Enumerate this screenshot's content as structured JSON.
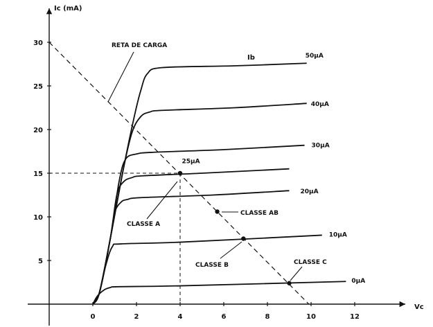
{
  "chart_data": {
    "type": "line",
    "x_axis": {
      "label": "Vc",
      "ticks": [
        0,
        2,
        4,
        6,
        8,
        10,
        12
      ],
      "range": [
        -2,
        15
      ]
    },
    "y_axis": {
      "label": "Ic (mA)",
      "ticks": [
        5,
        10,
        15,
        20,
        25,
        30
      ],
      "range": [
        -2,
        34
      ]
    },
    "grid": false,
    "family_label": "Ib",
    "series": [
      {
        "name": "50μA",
        "x": [
          0,
          0.3,
          0.8,
          1.4,
          1.9,
          2.2,
          2.5,
          3.2,
          6.5,
          9.8
        ],
        "y": [
          0,
          1.3,
          7.5,
          15.5,
          21.5,
          24.5,
          26.4,
          27.1,
          27.3,
          27.6
        ]
      },
      {
        "name": "40μA",
        "x": [
          0,
          0.3,
          0.8,
          1.4,
          1.8,
          2.2,
          2.6,
          3.2,
          6.5,
          9.8
        ],
        "y": [
          0,
          1.3,
          7.5,
          15.5,
          19.7,
          21.5,
          22.0,
          22.2,
          22.5,
          23.0
        ]
      },
      {
        "name": "30μA",
        "x": [
          0,
          0.3,
          0.8,
          1.2,
          1.5,
          2.0,
          2.8,
          6.0,
          9.7
        ],
        "y": [
          0,
          1.3,
          7.5,
          14.0,
          16.6,
          17.2,
          17.4,
          17.7,
          18.2
        ]
      },
      {
        "name": "25μA",
        "x": [
          0,
          0.3,
          0.8,
          1.1,
          1.4,
          1.8,
          2.3,
          5.0,
          9.0
        ],
        "y": [
          0,
          1.3,
          7.5,
          12.5,
          14.0,
          14.5,
          14.7,
          15.0,
          15.5
        ]
      },
      {
        "name": "20μA",
        "x": [
          0,
          0.3,
          0.8,
          1.0,
          1.3,
          1.6,
          2.2,
          5.5,
          9.0
        ],
        "y": [
          0,
          1.3,
          7.5,
          10.5,
          11.7,
          12.0,
          12.2,
          12.5,
          13.0
        ]
      },
      {
        "name": "10μA",
        "x": [
          0,
          0.3,
          0.6,
          0.9,
          1.3,
          4.0,
          10.5
        ],
        "y": [
          0,
          1.3,
          4.5,
          6.6,
          6.9,
          7.1,
          7.9
        ]
      },
      {
        "name": "0μA",
        "x": [
          0,
          0.2,
          0.5,
          0.8,
          1.2,
          4.0,
          11.6
        ],
        "y": [
          0,
          0.9,
          1.6,
          1.9,
          2.0,
          2.1,
          2.6
        ]
      }
    ],
    "load_line": {
      "label": "RETA DE CARGA",
      "x": [
        -2,
        9.9
      ],
      "y": [
        30,
        0
      ]
    },
    "points": [
      {
        "name": "CLASSE A",
        "label": "CLASSE A",
        "x": 4.0,
        "y": 15.0
      },
      {
        "name": "CLASSE AB",
        "label": "CLASSE AB",
        "x": 5.7,
        "y": 10.6
      },
      {
        "name": "CLASSE B",
        "label": "CLASSE B",
        "x": 6.9,
        "y": 7.5
      },
      {
        "name": "CLASSE C",
        "label": "CLASSE C",
        "x": 9.0,
        "y": 2.4
      }
    ]
  }
}
